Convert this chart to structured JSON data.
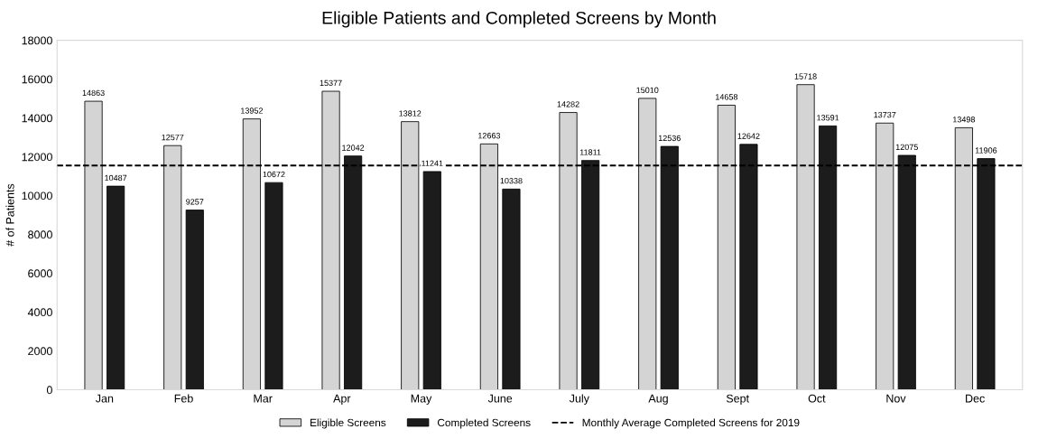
{
  "chart_data": {
    "type": "bar",
    "title": "Eligible Patients and Completed Screens by Month",
    "ylabel": "# of Patients",
    "categories": [
      "Jan",
      "Feb",
      "Mar",
      "Apr",
      "May",
      "June",
      "July",
      "Aug",
      "Sept",
      "Oct",
      "Nov",
      "Dec"
    ],
    "series": [
      {
        "name": "Eligible Screens",
        "color": "#d4d4d4",
        "values": [
          14863,
          12577,
          13952,
          15377,
          13812,
          12663,
          14282,
          15010,
          14658,
          15718,
          13737,
          13498
        ]
      },
      {
        "name": "Completed Screens",
        "color": "#1c1c1c",
        "values": [
          10487,
          9257,
          10672,
          12042,
          11241,
          10338,
          11811,
          12536,
          12642,
          13591,
          12075,
          11906
        ]
      }
    ],
    "ylim": [
      0,
      18000
    ],
    "yticks": [
      0,
      2000,
      4000,
      6000,
      8000,
      10000,
      12000,
      14000,
      16000,
      18000
    ],
    "ref_lines": [
      {
        "axis": "y",
        "value": 11550,
        "label": "Monthly Average Completed Screens for 2019",
        "color": "#000000",
        "line_style": "dashed"
      }
    ],
    "data_labels": true,
    "grid": false,
    "legend": "bottom"
  }
}
